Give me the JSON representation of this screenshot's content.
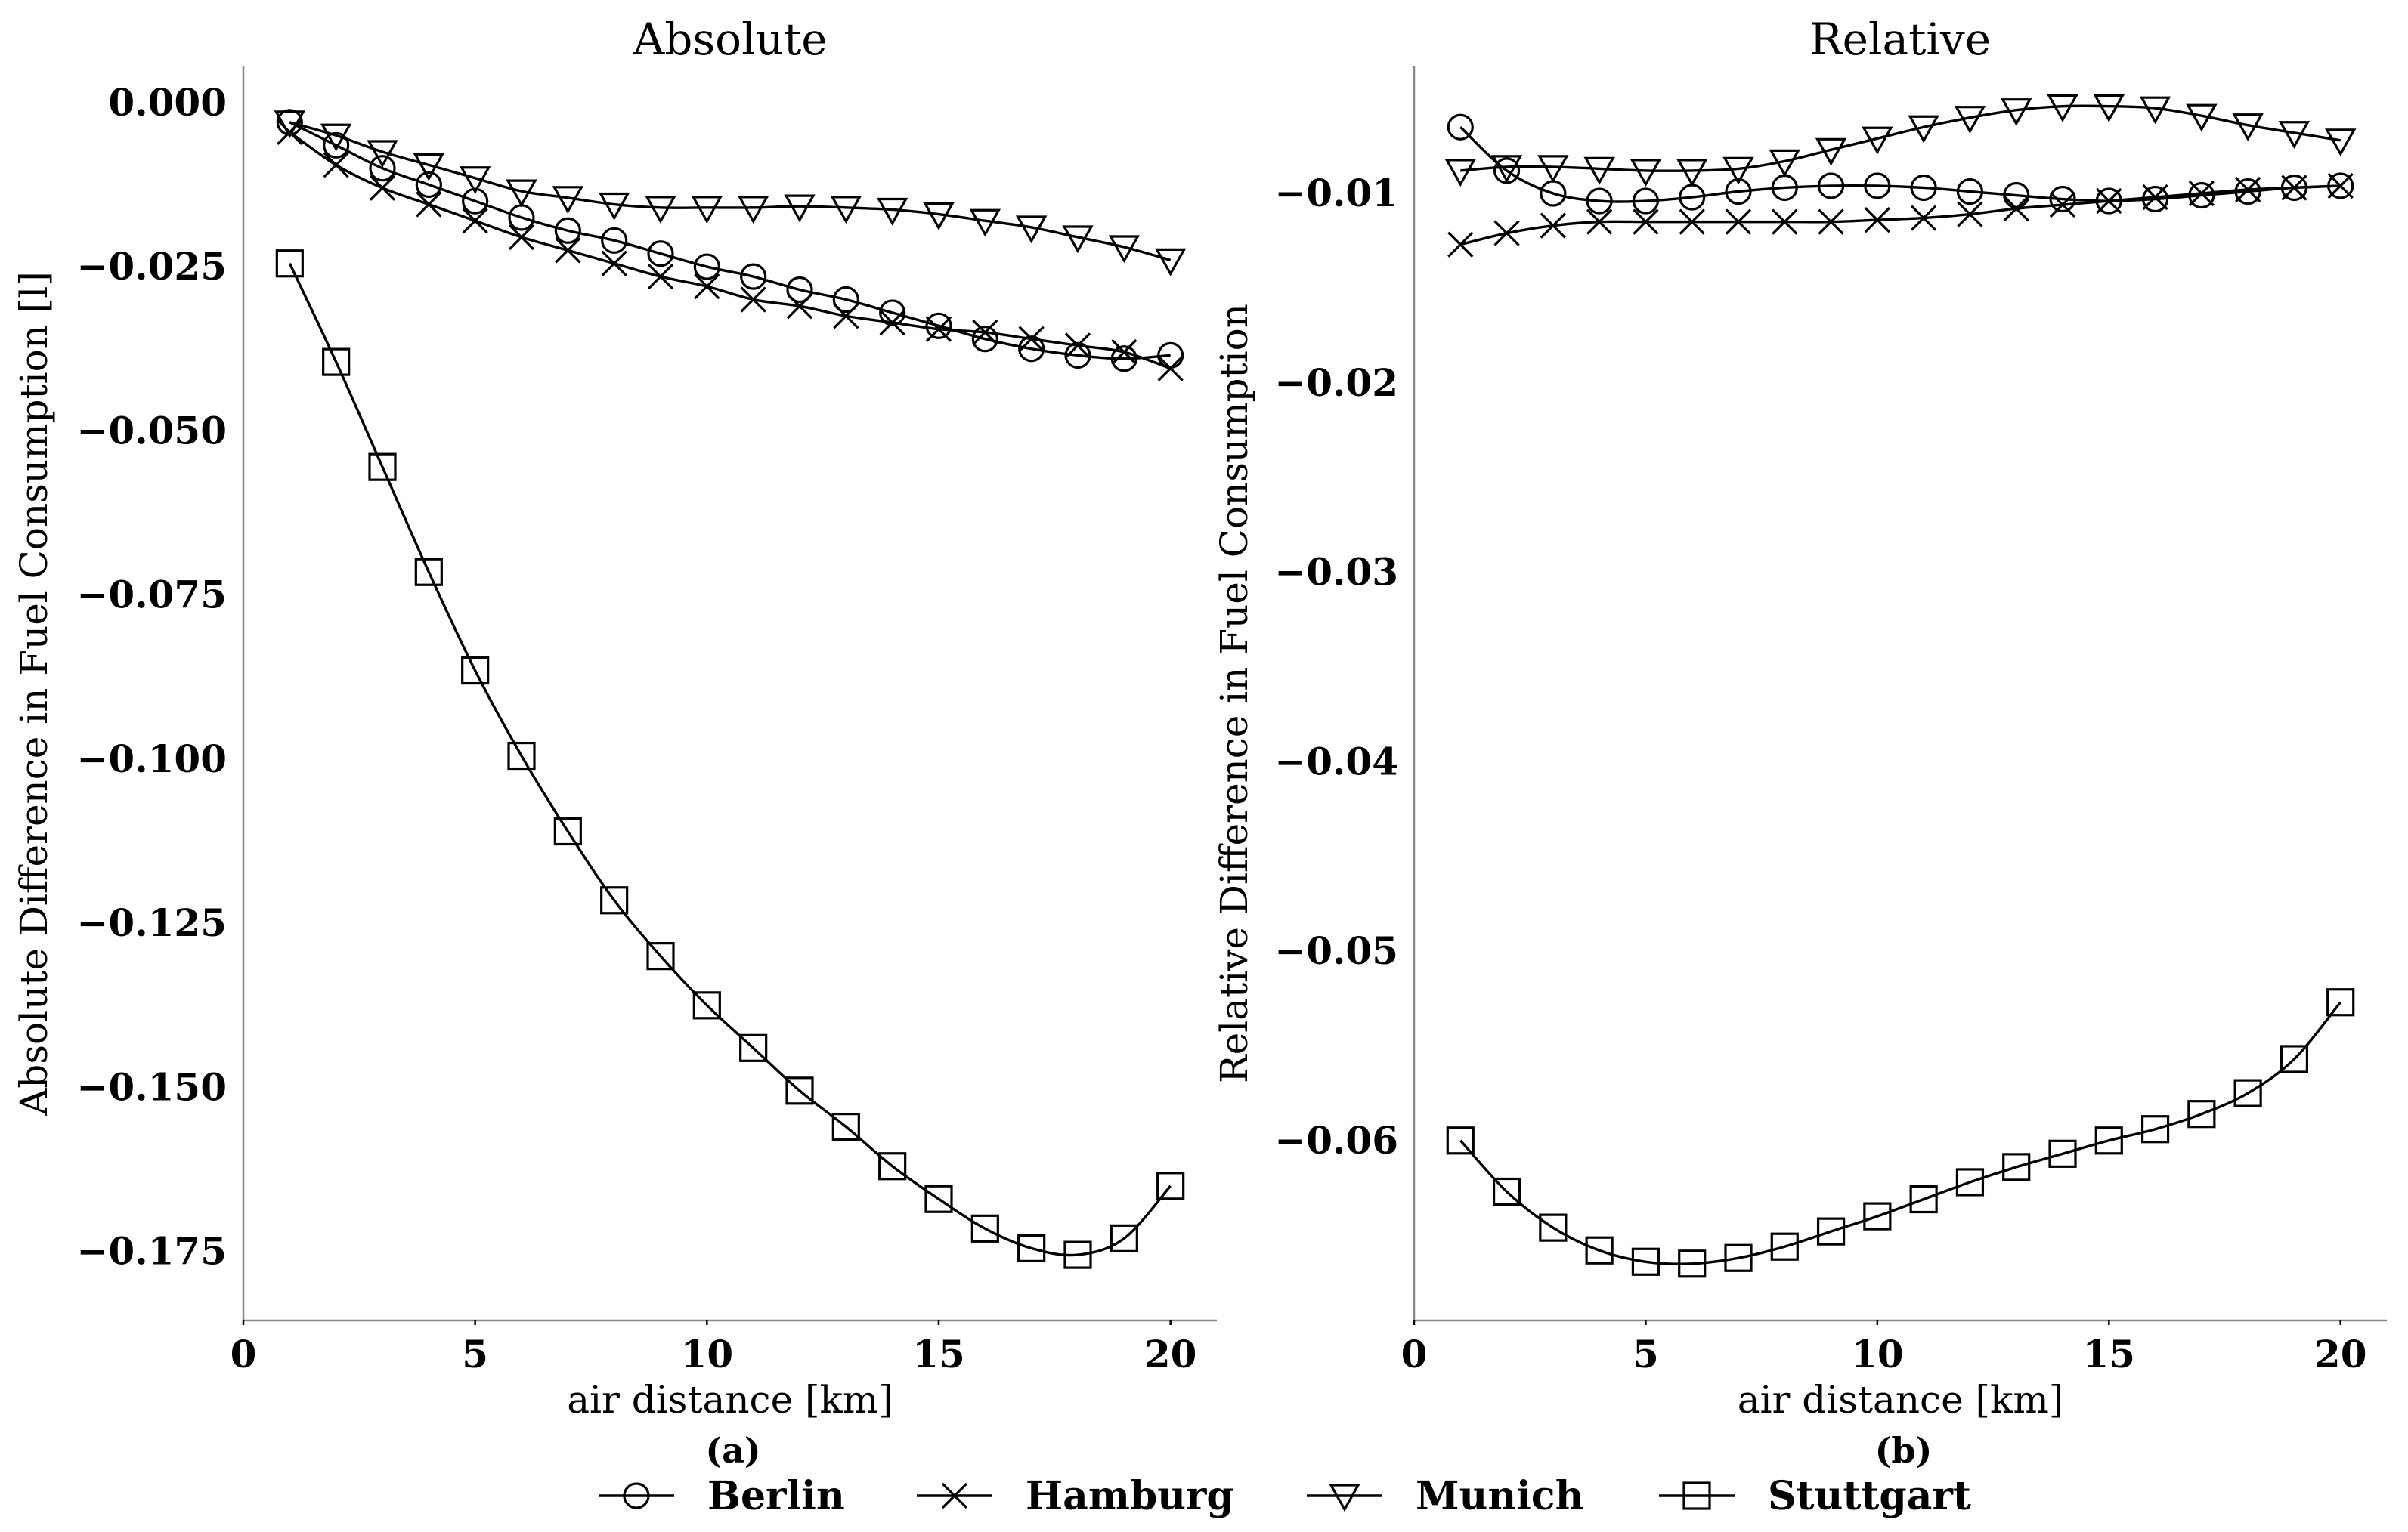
{
  "chart_data": [
    {
      "type": "line",
      "title": "Absolute",
      "sublabel": "(a)",
      "xlabel": "air distance [km]",
      "ylabel": "Absolute Difference in Fuel Consumption [l]",
      "xlim": [
        0,
        21
      ],
      "ylim": [
        -0.1855,
        0.0055
      ],
      "xticks": [
        0,
        5,
        10,
        15,
        20
      ],
      "xtick_labels": [
        "0",
        "5",
        "10",
        "15",
        "20"
      ],
      "yticks": [
        0,
        -0.025,
        -0.05,
        -0.075,
        -0.1,
        -0.125,
        -0.15,
        -0.175
      ],
      "ytick_labels": [
        "0.000",
        "−0.025",
        "−0.050",
        "−0.075",
        "−0.100",
        "−0.125",
        "−0.150",
        "−0.175"
      ],
      "x": [
        1,
        2,
        3,
        4,
        5,
        6,
        7,
        8,
        9,
        10,
        11,
        12,
        13,
        14,
        15,
        16,
        17,
        18,
        19,
        20
      ],
      "series": [
        {
          "name": "Berlin",
          "marker": "circle",
          "values": [
            -0.003,
            -0.0065,
            -0.01,
            -0.0125,
            -0.015,
            -0.0175,
            -0.0195,
            -0.021,
            -0.023,
            -0.025,
            -0.0265,
            -0.0285,
            -0.03,
            -0.032,
            -0.034,
            -0.036,
            -0.0375,
            -0.0385,
            -0.039,
            -0.0385
          ]
        },
        {
          "name": "Hamburg",
          "marker": "x",
          "values": [
            -0.0045,
            -0.0095,
            -0.013,
            -0.0155,
            -0.018,
            -0.0205,
            -0.0225,
            -0.0245,
            -0.0265,
            -0.028,
            -0.03,
            -0.031,
            -0.0325,
            -0.0335,
            -0.0345,
            -0.035,
            -0.036,
            -0.037,
            -0.038,
            -0.0405
          ]
        },
        {
          "name": "Munich",
          "marker": "triangle-down",
          "values": [
            -0.003,
            -0.005,
            -0.0075,
            -0.0095,
            -0.0115,
            -0.0135,
            -0.0145,
            -0.0155,
            -0.016,
            -0.016,
            -0.016,
            -0.0158,
            -0.016,
            -0.0163,
            -0.017,
            -0.018,
            -0.019,
            -0.0205,
            -0.022,
            -0.024
          ]
        },
        {
          "name": "Stuttgart",
          "marker": "square",
          "values": [
            -0.0245,
            -0.0395,
            -0.0555,
            -0.0715,
            -0.0865,
            -0.0995,
            -0.111,
            -0.1215,
            -0.13,
            -0.1375,
            -0.144,
            -0.1505,
            -0.156,
            -0.162,
            -0.167,
            -0.1715,
            -0.1745,
            -0.1755,
            -0.173,
            -0.165
          ]
        }
      ]
    },
    {
      "type": "line",
      "title": "Relative",
      "sublabel": "(b)",
      "xlabel": "air distance [km]",
      "ylabel": "Relative Difference in Fuel Consumption",
      "xlim": [
        0,
        21
      ],
      "ylim": [
        -0.0695,
        -0.0033
      ],
      "xticks": [
        0,
        5,
        10,
        15,
        20
      ],
      "xtick_labels": [
        "0",
        "5",
        "10",
        "15",
        "20"
      ],
      "yticks": [
        -0.01,
        -0.02,
        -0.03,
        -0.04,
        -0.05,
        -0.06
      ],
      "ytick_labels": [
        "−0.01",
        "−0.02",
        "−0.03",
        "−0.04",
        "−0.05",
        "−0.06"
      ],
      "x": [
        1,
        2,
        3,
        4,
        5,
        6,
        7,
        8,
        9,
        10,
        11,
        12,
        13,
        14,
        15,
        16,
        17,
        18,
        19,
        20
      ],
      "series": [
        {
          "name": "Berlin",
          "marker": "circle",
          "values": [
            -0.0065,
            -0.0088,
            -0.01,
            -0.0104,
            -0.0104,
            -0.0102,
            -0.0099,
            -0.0097,
            -0.0096,
            -0.0096,
            -0.0097,
            -0.0099,
            -0.0101,
            -0.0103,
            -0.0104,
            -0.0103,
            -0.0101,
            -0.0099,
            -0.0097,
            -0.0096
          ]
        },
        {
          "name": "Hamburg",
          "marker": "x",
          "values": [
            -0.0127,
            -0.0121,
            -0.0117,
            -0.0115,
            -0.0115,
            -0.0115,
            -0.0115,
            -0.0115,
            -0.0115,
            -0.0114,
            -0.0113,
            -0.0111,
            -0.0108,
            -0.0106,
            -0.0104,
            -0.0102,
            -0.01,
            -0.0098,
            -0.0097,
            -0.0096
          ]
        },
        {
          "name": "Munich",
          "marker": "triangle-down",
          "values": [
            -0.0088,
            -0.0086,
            -0.0086,
            -0.0087,
            -0.0088,
            -0.0088,
            -0.0087,
            -0.0083,
            -0.0077,
            -0.0071,
            -0.0065,
            -0.006,
            -0.0056,
            -0.0054,
            -0.0054,
            -0.0055,
            -0.0059,
            -0.0064,
            -0.0068,
            -0.0072
          ]
        },
        {
          "name": "Stuttgart",
          "marker": "square",
          "values": [
            -0.06,
            -0.0627,
            -0.0646,
            -0.0658,
            -0.0664,
            -0.0665,
            -0.0662,
            -0.0656,
            -0.0648,
            -0.064,
            -0.0631,
            -0.0622,
            -0.0614,
            -0.0607,
            -0.06,
            -0.0594,
            -0.0586,
            -0.0575,
            -0.0557,
            -0.0527
          ]
        }
      ]
    }
  ],
  "legend": {
    "items": [
      {
        "label": "Berlin",
        "marker": "circle"
      },
      {
        "label": "Hamburg",
        "marker": "x"
      },
      {
        "label": "Munich",
        "marker": "triangle-down"
      },
      {
        "label": "Stuttgart",
        "marker": "square"
      }
    ]
  }
}
